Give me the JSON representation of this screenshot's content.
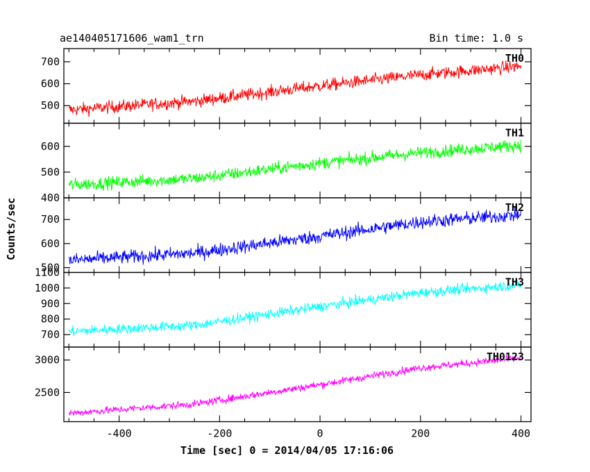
{
  "header": {
    "title": "ae140405171606_wam1_trn",
    "bin_time": "Bin time: 1.0 s"
  },
  "axes": {
    "xlabel": "Time [sec] 0 = 2014/04/05 17:16:06",
    "ylabel": "Counts/sec"
  },
  "chart_data": {
    "type": "line",
    "title": "ae140405171606_wam1_trn",
    "subtitle": "Bin time: 1.0 s",
    "xlabel": "Time [sec] 0 = 2014/04/05 17:16:06",
    "ylabel": "Counts/sec",
    "xlim": [
      -510,
      420
    ],
    "xticks": [
      -400,
      -200,
      0,
      200,
      400
    ],
    "x_range_data": [
      -500,
      400
    ],
    "bin_time_s": 1.0,
    "grid": false,
    "panels": [
      {
        "name": "TH0",
        "color": "#ff0000",
        "ylim": [
          420,
          760
        ],
        "yticks": [
          500,
          600,
          700
        ],
        "trend": [
          {
            "x": -500,
            "y": 480
          },
          {
            "x": -250,
            "y": 520
          },
          {
            "x": 0,
            "y": 590
          },
          {
            "x": 200,
            "y": 640
          },
          {
            "x": 400,
            "y": 680
          }
        ],
        "noise_amplitude": 35
      },
      {
        "name": "TH1",
        "color": "#00ff00",
        "ylim": [
          400,
          690
        ],
        "yticks": [
          400,
          500,
          600
        ],
        "trend": [
          {
            "x": -500,
            "y": 450
          },
          {
            "x": -250,
            "y": 475
          },
          {
            "x": 0,
            "y": 535
          },
          {
            "x": 200,
            "y": 575
          },
          {
            "x": 400,
            "y": 605
          }
        ],
        "noise_amplitude": 30
      },
      {
        "name": "TH2",
        "color": "#0000ff",
        "ylim": [
          480,
          790
        ],
        "yticks": [
          500,
          600,
          700
        ],
        "trend": [
          {
            "x": -500,
            "y": 530
          },
          {
            "x": -250,
            "y": 560
          },
          {
            "x": 0,
            "y": 630
          },
          {
            "x": 200,
            "y": 690
          },
          {
            "x": 400,
            "y": 720
          }
        ],
        "noise_amplitude": 35
      },
      {
        "name": "TH3",
        "color": "#00ffff",
        "ylim": [
          620,
          1100
        ],
        "yticks": [
          700,
          800,
          900,
          1000,
          1100
        ],
        "trend": [
          {
            "x": -500,
            "y": 720
          },
          {
            "x": -250,
            "y": 760
          },
          {
            "x": 0,
            "y": 880
          },
          {
            "x": 200,
            "y": 970
          },
          {
            "x": 400,
            "y": 1020
          }
        ],
        "noise_amplitude": 40
      },
      {
        "name": "TH0123",
        "color": "#ff00ff",
        "ylim": [
          2050,
          3200
        ],
        "yticks": [
          2500,
          3000
        ],
        "trend": [
          {
            "x": -500,
            "y": 2180
          },
          {
            "x": -250,
            "y": 2320
          },
          {
            "x": 0,
            "y": 2620
          },
          {
            "x": 200,
            "y": 2880
          },
          {
            "x": 400,
            "y": 3030
          }
        ],
        "noise_amplitude": 70
      }
    ]
  }
}
